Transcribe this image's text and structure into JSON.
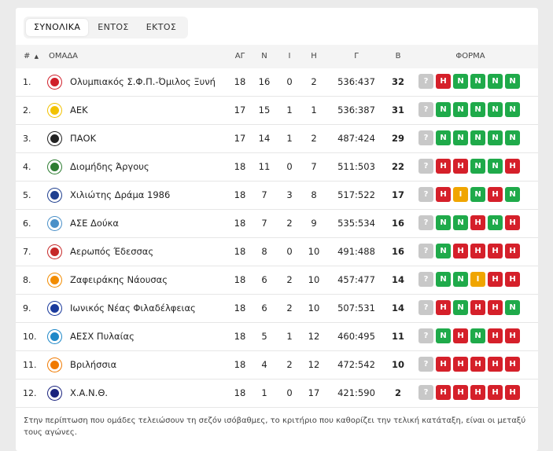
{
  "tabs": [
    "ΣΥΝΟΛΙΚΑ",
    "ΕΝΤΟΣ",
    "ΕΚΤΟΣ"
  ],
  "header": {
    "rank": "#",
    "sort_icon": "▲",
    "team": "ΟΜΑΔΑ",
    "played": "ΑΓ",
    "wins": "Ν",
    "draws": "Ι",
    "losses": "Η",
    "goals": "Γ",
    "points": "Β",
    "form": "ΦΟΡΜΑ"
  },
  "colors": {
    "win": "#1faa4a",
    "draw": "#f0a500",
    "loss": "#d5202a",
    "next": "#c8c8c8"
  },
  "rows": [
    {
      "rank": "1.",
      "team": "Ολυμπιακός Σ.Φ.Π.-Όμιλος Ξυνή",
      "played": "18",
      "wins": "16",
      "draws": "0",
      "losses": "2",
      "goals": "536:437",
      "points": "32",
      "form": [
        "?",
        "Η",
        "Ν",
        "Ν",
        "Ν",
        "Ν"
      ],
      "logo_color": "#d01f2a",
      "logo_icon": "olympiakos-logo-icon"
    },
    {
      "rank": "2.",
      "team": "ΑΕΚ",
      "played": "17",
      "wins": "15",
      "draws": "1",
      "losses": "1",
      "goals": "536:387",
      "points": "31",
      "form": [
        "?",
        "Ν",
        "Ν",
        "Ν",
        "Ν",
        "Ν"
      ],
      "logo_color": "#f2c200",
      "logo_icon": "aek-logo-icon"
    },
    {
      "rank": "3.",
      "team": "ΠΑΟΚ",
      "played": "17",
      "wins": "14",
      "draws": "1",
      "losses": "2",
      "goals": "487:424",
      "points": "29",
      "form": [
        "?",
        "Ν",
        "Ν",
        "Ν",
        "Ν",
        "Ν"
      ],
      "logo_color": "#222222",
      "logo_icon": "paok-logo-icon"
    },
    {
      "rank": "4.",
      "team": "Διομήδης Άργους",
      "played": "18",
      "wins": "11",
      "draws": "0",
      "losses": "7",
      "goals": "511:503",
      "points": "22",
      "form": [
        "?",
        "Η",
        "Η",
        "Ν",
        "Ν",
        "Η"
      ],
      "logo_color": "#2e7d32",
      "logo_icon": "diomidis-logo-icon"
    },
    {
      "rank": "5.",
      "team": "Χιλιώτης Δράμα 1986",
      "played": "18",
      "wins": "7",
      "draws": "3",
      "losses": "8",
      "goals": "517:522",
      "points": "17",
      "form": [
        "?",
        "Η",
        "Ι",
        "Ν",
        "Η",
        "Ν"
      ],
      "logo_color": "#1f3f8f",
      "logo_icon": "chiliotis-logo-icon"
    },
    {
      "rank": "6.",
      "team": "ΑΣΕ Δούκα",
      "played": "18",
      "wins": "7",
      "draws": "2",
      "losses": "9",
      "goals": "535:534",
      "points": "16",
      "form": [
        "?",
        "Ν",
        "Ν",
        "Η",
        "Ν",
        "Η"
      ],
      "logo_color": "#4a90c8",
      "logo_icon": "ase-douka-logo-icon"
    },
    {
      "rank": "7.",
      "team": "Αερωπός Έδεσσας",
      "played": "18",
      "wins": "8",
      "draws": "0",
      "losses": "10",
      "goals": "491:488",
      "points": "16",
      "form": [
        "?",
        "Ν",
        "Η",
        "Η",
        "Η",
        "Η"
      ],
      "logo_color": "#c62828",
      "logo_icon": "aeropos-logo-icon"
    },
    {
      "rank": "8.",
      "team": "Ζαφειράκης Νάουσας",
      "played": "18",
      "wins": "6",
      "draws": "2",
      "losses": "10",
      "goals": "457:477",
      "points": "14",
      "form": [
        "?",
        "Ν",
        "Ν",
        "Ι",
        "Η",
        "Η"
      ],
      "logo_color": "#f28c00",
      "logo_icon": "zafeirakis-logo-icon"
    },
    {
      "rank": "9.",
      "team": "Ιωνικός Νέας Φιλαδέλφειας",
      "played": "18",
      "wins": "6",
      "draws": "2",
      "losses": "10",
      "goals": "507:531",
      "points": "14",
      "form": [
        "?",
        "Η",
        "Ν",
        "Η",
        "Η",
        "Ν"
      ],
      "logo_color": "#1a3a9c",
      "logo_icon": "ionikos-logo-icon"
    },
    {
      "rank": "10.",
      "team": "ΑΕΣΧ Πυλαίας",
      "played": "18",
      "wins": "5",
      "draws": "1",
      "losses": "12",
      "goals": "460:495",
      "points": "11",
      "form": [
        "?",
        "Ν",
        "Η",
        "Ν",
        "Η",
        "Η"
      ],
      "logo_color": "#1e88c8",
      "logo_icon": "aesch-logo-icon"
    },
    {
      "rank": "11.",
      "team": "Βριλήσσια",
      "played": "18",
      "wins": "4",
      "draws": "2",
      "losses": "12",
      "goals": "472:542",
      "points": "10",
      "form": [
        "?",
        "Η",
        "Η",
        "Η",
        "Η",
        "Η"
      ],
      "logo_color": "#f07a00",
      "logo_icon": "vrilissia-logo-icon"
    },
    {
      "rank": "12.",
      "team": "Χ.Α.Ν.Θ.",
      "played": "18",
      "wins": "1",
      "draws": "0",
      "losses": "17",
      "goals": "421:590",
      "points": "2",
      "form": [
        "?",
        "Η",
        "Η",
        "Η",
        "Η",
        "Η"
      ],
      "logo_color": "#1a237e",
      "logo_icon": "xanth-logo-icon"
    }
  ],
  "note": "Στην περίπτωση που ομάδες τελειώσουν τη σεζόν ισόβαθμες, το κριτήριο που καθορίζει την τελική κατάταξη, είναι οι μεταξύ τους αγώνες."
}
